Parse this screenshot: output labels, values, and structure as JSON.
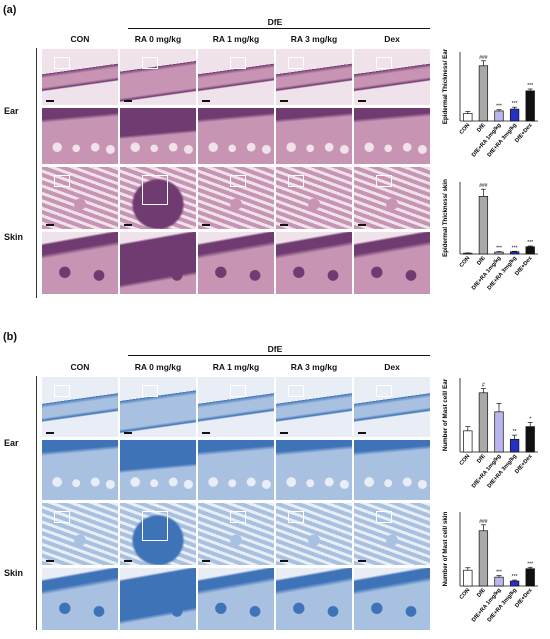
{
  "panels": [
    {
      "letter": "(a)",
      "group_label": "DfE",
      "columns": [
        "CON",
        "RA 0 mg/kg",
        "RA 1 mg/kg",
        "RA 3 mg/kg",
        "Dex"
      ],
      "rows": [
        "Ear",
        "Skin"
      ],
      "stain": "he",
      "charts": [
        {
          "ylabel": "Epidermal Thickness/ Ear",
          "categories": [
            "CON",
            "DfE",
            "DfE+RA 1mg/kg",
            "DfE+RA 3mg/kg",
            "DfE+Dex"
          ],
          "values": [
            12,
            88,
            16,
            19,
            48
          ],
          "errors": [
            3,
            8,
            2,
            3,
            3
          ],
          "annotations": [
            "",
            "###",
            "***",
            "***",
            "***"
          ],
          "ylim": [
            0,
            110
          ]
        },
        {
          "ylabel": "Epidermal Thickness/ skin",
          "categories": [
            "CON",
            "DfE",
            "DfE+RA 1mg/kg",
            "DfE+RA 3mg/kg",
            "DfE+Dex"
          ],
          "values": [
            5,
            360,
            12,
            14,
            45
          ],
          "errors": [
            2,
            45,
            3,
            3,
            5
          ],
          "annotations": [
            "",
            "###",
            "***",
            "***",
            "***"
          ],
          "ylim": [
            0,
            450
          ]
        }
      ]
    },
    {
      "letter": "(b)",
      "group_label": "DfE",
      "columns": [
        "CON",
        "RA 0 mg/kg",
        "RA 1 mg/kg",
        "RA 3 mg/kg",
        "Dex"
      ],
      "rows": [
        "Ear",
        "Skin"
      ],
      "stain": "tb",
      "charts": [
        {
          "ylabel": "Number of Mast cell/ Ear",
          "categories": [
            "CON",
            "DfE",
            "DfE+RA 1mg/kg",
            "DfE+RA 3mg/kg",
            "DfE+Dex"
          ],
          "values": [
            10,
            28,
            19,
            6,
            12
          ],
          "errors": [
            2,
            2,
            4,
            2,
            2
          ],
          "annotations": [
            "",
            "#",
            "",
            "**",
            "*"
          ],
          "ylim": [
            0,
            35
          ]
        },
        {
          "ylabel": "Number of Mast cell/ skin",
          "categories": [
            "CON",
            "DfE",
            "DfE+RA 1mg/kg",
            "DfE+RA 3mg/kg",
            "DfE+Dex"
          ],
          "values": [
            32,
            112,
            18,
            10,
            35
          ],
          "errors": [
            5,
            12,
            3,
            2,
            3
          ],
          "annotations": [
            "",
            "###",
            "***",
            "***",
            "***"
          ],
          "ylim": [
            0,
            150
          ]
        }
      ]
    }
  ],
  "colors": {
    "bar_fills": [
      "#ffffff",
      "#a9a9a9",
      "#b9b6ee",
      "#2630c4",
      "#111111"
    ],
    "he_background": "#efe2ea",
    "he_tissue": "#c894b4",
    "he_epidermis": "#6f3b70",
    "tb_background": "#e9edf5",
    "tb_tissue": "#a9c1e1",
    "tb_epidermis": "#3f73b8"
  }
}
